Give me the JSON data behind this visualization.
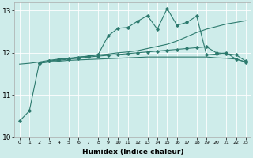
{
  "xlabel": "Humidex (Indice chaleur)",
  "xlim": [
    -0.5,
    23.5
  ],
  "ylim": [
    10,
    13.2
  ],
  "yticks": [
    10,
    11,
    12,
    13
  ],
  "xticks": [
    0,
    1,
    2,
    3,
    4,
    5,
    6,
    7,
    8,
    9,
    10,
    11,
    12,
    13,
    14,
    15,
    16,
    17,
    18,
    19,
    20,
    21,
    22,
    23
  ],
  "bg_color": "#ceecea",
  "line_color": "#2d7a6e",
  "line1_x": [
    0,
    1,
    2,
    3,
    4,
    5,
    6,
    7,
    8,
    9,
    10,
    11,
    12,
    13,
    14,
    15,
    16,
    17,
    18,
    19,
    20,
    21,
    22,
    23
  ],
  "line1_y": [
    10.38,
    10.62,
    11.75,
    11.8,
    11.84,
    11.86,
    11.89,
    11.92,
    11.96,
    12.4,
    12.58,
    12.6,
    12.75,
    12.88,
    12.56,
    13.05,
    12.65,
    12.72,
    12.87,
    11.95,
    11.97,
    12.0,
    11.85,
    11.78
  ],
  "line2_x": [
    0,
    1,
    2,
    3,
    4,
    5,
    6,
    7,
    8,
    9,
    10,
    11,
    12,
    13,
    14,
    15,
    16,
    17,
    18,
    19,
    20,
    21,
    22,
    23
  ],
  "line2_y": [
    11.73,
    11.75,
    11.78,
    11.82,
    11.85,
    11.87,
    11.9,
    11.92,
    11.95,
    11.97,
    12.0,
    12.02,
    12.05,
    12.1,
    12.15,
    12.2,
    12.28,
    12.38,
    12.48,
    12.56,
    12.62,
    12.68,
    12.72,
    12.76
  ],
  "line3_x": [
    2,
    3,
    4,
    5,
    6,
    7,
    8,
    9,
    10,
    11,
    12,
    13,
    14,
    15,
    16,
    17,
    18,
    19,
    20,
    21,
    22,
    23
  ],
  "line3_y": [
    11.75,
    11.8,
    11.82,
    11.85,
    11.87,
    11.9,
    11.92,
    11.94,
    11.96,
    11.98,
    12.0,
    12.02,
    12.04,
    12.06,
    12.08,
    12.1,
    12.12,
    12.14,
    12.0,
    11.98,
    11.95,
    11.8
  ],
  "line4_x": [
    2,
    3,
    4,
    5,
    6,
    7,
    8,
    9,
    10,
    11,
    12,
    13,
    14,
    15,
    16,
    17,
    18,
    19,
    20,
    21,
    22,
    23
  ],
  "line4_y": [
    11.75,
    11.78,
    11.8,
    11.82,
    11.83,
    11.84,
    11.85,
    11.86,
    11.87,
    11.88,
    11.89,
    11.9,
    11.9,
    11.9,
    11.9,
    11.9,
    11.9,
    11.9,
    11.88,
    11.87,
    11.85,
    11.78
  ]
}
